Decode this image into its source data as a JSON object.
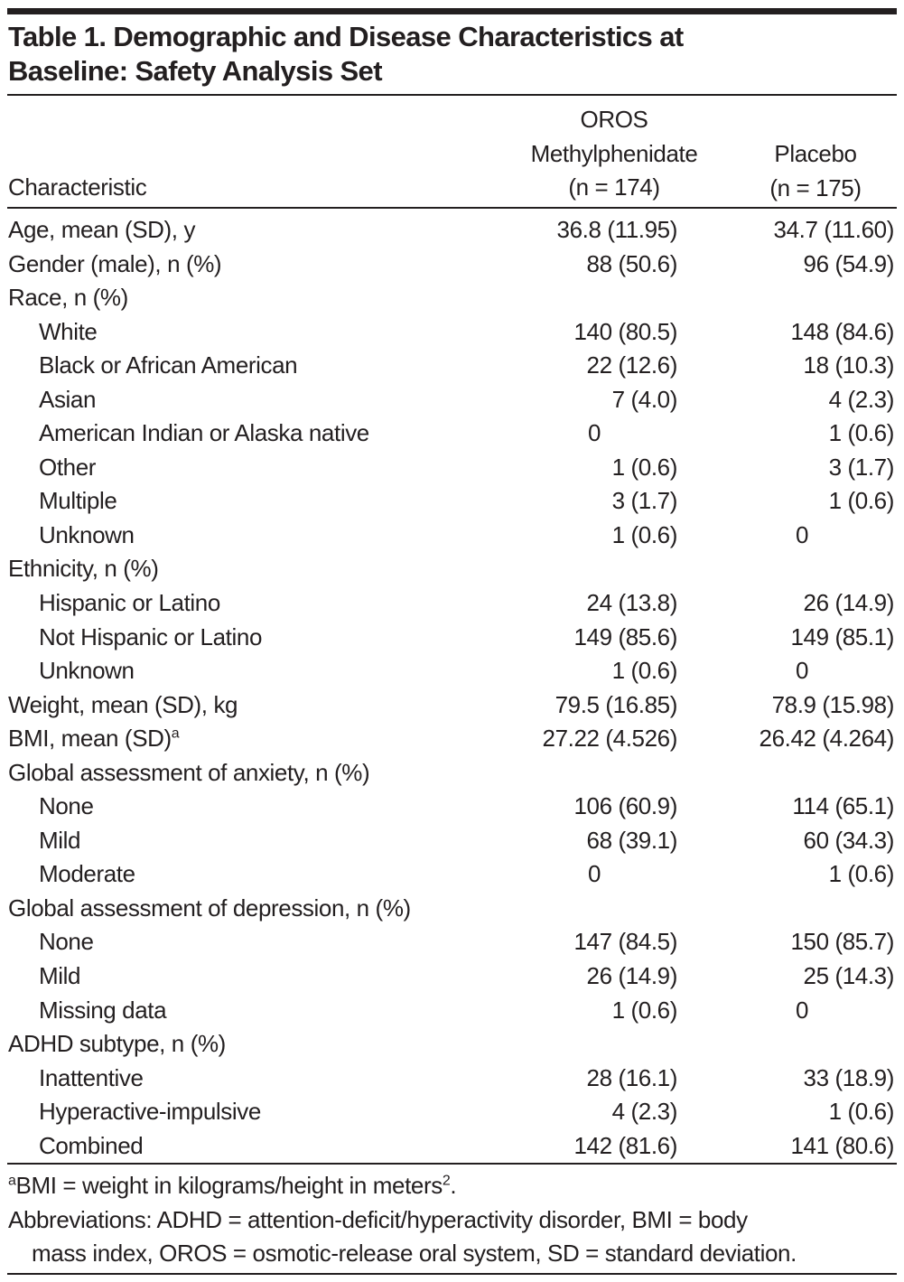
{
  "table": {
    "title_line1": "Table 1. Demographic and Disease Characteristics at",
    "title_line2": "Baseline: Safety Analysis Set",
    "columns": {
      "characteristic": "Characteristic",
      "treatment": {
        "line1": "OROS",
        "line2": "Methylphenidate",
        "line3": "(n = 174)"
      },
      "placebo": {
        "line1": "Placebo",
        "line2": "(n = 175)"
      }
    },
    "rows": [
      {
        "label": "Age, mean (SD), y",
        "level": 0,
        "oros": "36.8 (11.95)",
        "placebo": "34.7 (11.60)"
      },
      {
        "label": "Gender (male), n (%)",
        "level": 0,
        "oros": "88 (50.6)",
        "placebo": "96 (54.9)"
      },
      {
        "label": "Race, n (%)",
        "level": 0,
        "oros": "",
        "placebo": ""
      },
      {
        "label": "White",
        "level": 1,
        "oros": "140 (80.5)",
        "placebo": "148 (84.6)"
      },
      {
        "label": "Black or African American",
        "level": 1,
        "oros": "22 (12.6)",
        "placebo": "18 (10.3)"
      },
      {
        "label": "Asian",
        "level": 1,
        "oros": "7 (4.0)",
        "placebo": "4 (2.3)"
      },
      {
        "label": "American Indian or Alaska native",
        "level": 1,
        "oros": "0",
        "placebo": "1 (0.6)"
      },
      {
        "label": "Other",
        "level": 1,
        "oros": "1 (0.6)",
        "placebo": "3 (1.7)"
      },
      {
        "label": "Multiple",
        "level": 1,
        "oros": "3 (1.7)",
        "placebo": "1 (0.6)"
      },
      {
        "label": "Unknown",
        "level": 1,
        "oros": "1 (0.6)",
        "placebo": "0"
      },
      {
        "label": "Ethnicity, n (%)",
        "level": 0,
        "oros": "",
        "placebo": ""
      },
      {
        "label": "Hispanic or Latino",
        "level": 1,
        "oros": "24 (13.8)",
        "placebo": "26 (14.9)"
      },
      {
        "label": "Not Hispanic or Latino",
        "level": 1,
        "oros": "149 (85.6)",
        "placebo": "149 (85.1)"
      },
      {
        "label": "Unknown",
        "level": 1,
        "oros": "1 (0.6)",
        "placebo": "0"
      },
      {
        "label": "Weight, mean (SD), kg",
        "level": 0,
        "oros": "79.5 (16.85)",
        "placebo": "78.9 (15.98)"
      },
      {
        "label": "BMI, mean (SD)",
        "label_sup": "a",
        "level": 0,
        "oros": "27.22 (4.526)",
        "placebo": "26.42 (4.264)"
      },
      {
        "label": "Global assessment of anxiety, n (%)",
        "level": 0,
        "oros": "",
        "placebo": ""
      },
      {
        "label": "None",
        "level": 1,
        "oros": "106 (60.9)",
        "placebo": "114 (65.1)"
      },
      {
        "label": "Mild",
        "level": 1,
        "oros": "68 (39.1)",
        "placebo": "60 (34.3)"
      },
      {
        "label": "Moderate",
        "level": 1,
        "oros": "0",
        "placebo": "1 (0.6)"
      },
      {
        "label": "Global assessment of depression, n (%)",
        "level": 0,
        "oros": "",
        "placebo": ""
      },
      {
        "label": "None",
        "level": 1,
        "oros": "147 (84.5)",
        "placebo": "150 (85.7)"
      },
      {
        "label": "Mild",
        "level": 1,
        "oros": "26 (14.9)",
        "placebo": "25 (14.3)"
      },
      {
        "label": "Missing data",
        "level": 1,
        "oros": "1 (0.6)",
        "placebo": "0"
      },
      {
        "label": "ADHD subtype, n (%)",
        "level": 0,
        "oros": "",
        "placebo": ""
      },
      {
        "label": "Inattentive",
        "level": 1,
        "oros": "28 (16.1)",
        "placebo": "33 (18.9)"
      },
      {
        "label": "Hyperactive-impulsive",
        "level": 1,
        "oros": "4 (2.3)",
        "placebo": "1 (0.6)"
      },
      {
        "label": "Combined",
        "level": 1,
        "oros": "142 (81.6)",
        "placebo": "141 (80.6)"
      }
    ],
    "footnotes": {
      "a_marker": "a",
      "a_text": "BMI = weight in kilograms/height in meters",
      "a_sup": "2",
      "a_end": ".",
      "abbrev_line1": "Abbreviations: ADHD = attention-deficit/hyperactivity disorder, BMI = body",
      "abbrev_line2": "mass index, OROS = osmotic-release oral system, SD = standard deviation."
    }
  }
}
